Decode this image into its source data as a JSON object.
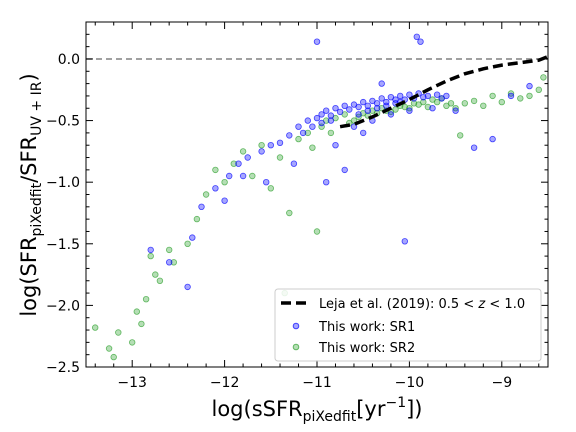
{
  "chart_data": {
    "type": "scatter",
    "xlabel_main": "log(sSFR",
    "xlabel_sub": "piXedfit",
    "xlabel_tail": "[yr",
    "xlabel_sup": "−1",
    "xlabel_end": "])",
    "ylabel_main": "log(SFR",
    "ylabel_sub1": "piXedfit",
    "ylabel_mid": "/SFR",
    "ylabel_sub2": "UV + IR",
    "ylabel_end": ")",
    "xlim": [
      -13.5,
      -8.5
    ],
    "ylim": [
      -2.5,
      0.3
    ],
    "x_ticks": [
      -13,
      -12,
      -11,
      -10,
      -9
    ],
    "x_tick_labels": [
      "−13",
      "−12",
      "−11",
      "−10",
      "−9"
    ],
    "y_ticks": [
      0.0,
      -0.5,
      -1.0,
      -1.5,
      -2.0,
      -2.5
    ],
    "y_tick_labels": [
      "0.0",
      "−0.5",
      "−1.0",
      "−1.5",
      "−2.0",
      "−2.5"
    ],
    "reference_line": {
      "y": 0.0,
      "style": "dashed",
      "color": "#808080"
    },
    "legend_position": "lower-right",
    "series": [
      {
        "name": "Leja et al. (2019): 0.5 < z < 1.0",
        "legend_parts": [
          "Leja et al. (2019): 0.5",
          "<",
          "z",
          "<",
          "1.0"
        ],
        "kind": "line",
        "color": "#000000",
        "x": [
          -10.75,
          -10.6,
          -10.4,
          -10.2,
          -10.0,
          -9.8,
          -9.6,
          -9.4,
          -9.2,
          -9.0,
          -8.8,
          -8.6,
          -8.5
        ],
        "y": [
          -0.55,
          -0.53,
          -0.47,
          -0.4,
          -0.33,
          -0.25,
          -0.18,
          -0.12,
          -0.08,
          -0.05,
          -0.03,
          -0.01,
          0.02
        ]
      },
      {
        "name": "This work: SR1",
        "kind": "scatter",
        "color": "#0000ff",
        "x": [
          -12.6,
          -12.35,
          -12.25,
          -12.1,
          -11.95,
          -11.85,
          -11.75,
          -11.6,
          -11.5,
          -11.4,
          -11.3,
          -11.2,
          -11.1,
          -11.0,
          -10.95,
          -10.9,
          -10.85,
          -10.8,
          -10.75,
          -10.7,
          -10.65,
          -10.6,
          -10.55,
          -10.5,
          -10.45,
          -10.4,
          -10.35,
          -10.3,
          -10.25,
          -10.2,
          -10.15,
          -10.1,
          -10.05,
          -10.0,
          -9.95,
          -9.9,
          -9.85,
          -9.8,
          -9.7,
          -9.6,
          -9.5,
          -9.3,
          -9.1,
          -8.9,
          -8.7,
          -12.4,
          -12.8,
          -11.0,
          -10.9,
          -10.05,
          -9.92,
          -9.88,
          -10.3,
          -10.7,
          -11.25,
          -11.55,
          -11.8,
          -12.0,
          -10.5,
          -10.8,
          -10.6,
          -10.4,
          -10.2,
          -10.0,
          -9.75,
          -11.15,
          -11.05,
          -10.95,
          -10.85,
          -10.55,
          -10.45,
          -10.35,
          -10.25,
          -10.15,
          -10.1,
          -9.65
        ],
        "y": [
          -1.65,
          -1.45,
          -1.2,
          -1.05,
          -0.95,
          -0.85,
          -0.8,
          -0.75,
          -0.7,
          -0.68,
          -0.62,
          -0.55,
          -0.5,
          -0.48,
          -0.45,
          -0.42,
          -0.46,
          -0.4,
          -0.43,
          -0.38,
          -0.41,
          -0.37,
          -0.39,
          -0.35,
          -0.38,
          -0.34,
          -0.36,
          -0.32,
          -0.35,
          -0.31,
          -0.33,
          -0.3,
          -0.33,
          -0.29,
          -0.32,
          -0.28,
          -0.31,
          -0.3,
          -0.29,
          -0.3,
          -0.42,
          -0.72,
          -0.65,
          -0.3,
          -0.22,
          -1.85,
          -1.55,
          0.14,
          -1.0,
          -1.48,
          0.18,
          0.14,
          -0.2,
          -0.9,
          -0.85,
          -1.0,
          -0.95,
          -1.15,
          -0.6,
          -0.7,
          -0.55,
          -0.5,
          -0.45,
          -0.42,
          -0.4,
          -0.6,
          -0.55,
          -0.52,
          -0.5,
          -0.45,
          -0.42,
          -0.4,
          -0.38,
          -0.36,
          -0.35,
          -0.32
        ]
      },
      {
        "name": "This work: SR2",
        "kind": "scatter",
        "color": "#2ca02c",
        "x": [
          -13.4,
          -13.25,
          -13.15,
          -13.0,
          -12.9,
          -12.85,
          -12.8,
          -12.7,
          -12.55,
          -12.4,
          -12.3,
          -12.2,
          -12.1,
          -12.0,
          -11.9,
          -11.8,
          -11.7,
          -11.6,
          -11.5,
          -11.4,
          -11.3,
          -11.2,
          -11.1,
          -11.0,
          -10.95,
          -10.9,
          -10.85,
          -10.8,
          -10.7,
          -10.6,
          -10.5,
          -10.4,
          -10.3,
          -10.2,
          -10.1,
          -10.0,
          -9.9,
          -9.8,
          -9.7,
          -9.6,
          -9.5,
          -9.4,
          -9.3,
          -9.2,
          -9.1,
          -9.0,
          -8.9,
          -8.8,
          -8.7,
          -8.6,
          -8.55,
          -13.2,
          -12.95,
          -12.75,
          -12.6,
          -11.35,
          -11.05,
          -10.65,
          -10.55,
          -10.45,
          -10.35,
          -10.25,
          -10.15,
          -10.05,
          -9.95,
          -9.85,
          -9.75,
          -9.65,
          -9.55,
          -9.45
        ],
        "y": [
          -2.18,
          -2.35,
          -2.22,
          -2.3,
          -2.15,
          -1.95,
          -1.6,
          -1.8,
          -1.65,
          -1.5,
          -1.3,
          -1.1,
          -0.9,
          -1.0,
          -0.85,
          -0.75,
          -0.95,
          -0.7,
          -1.05,
          -0.8,
          -1.25,
          -0.65,
          -0.6,
          -1.4,
          -0.55,
          -0.5,
          -0.6,
          -0.48,
          -0.45,
          -0.5,
          -0.44,
          -0.42,
          -0.4,
          -0.43,
          -0.38,
          -0.4,
          -0.37,
          -0.39,
          -0.35,
          -0.38,
          -0.4,
          -0.36,
          -0.34,
          -0.38,
          -0.3,
          -0.35,
          -0.28,
          -0.32,
          -0.3,
          -0.25,
          -0.15,
          -2.42,
          -2.05,
          -1.75,
          -1.55,
          -1.9,
          -0.72,
          -0.52,
          -0.47,
          -0.46,
          -0.44,
          -0.42,
          -0.41,
          -0.39,
          -0.36,
          -0.35,
          -0.33,
          -0.32,
          -0.36,
          -0.62
        ]
      }
    ]
  }
}
